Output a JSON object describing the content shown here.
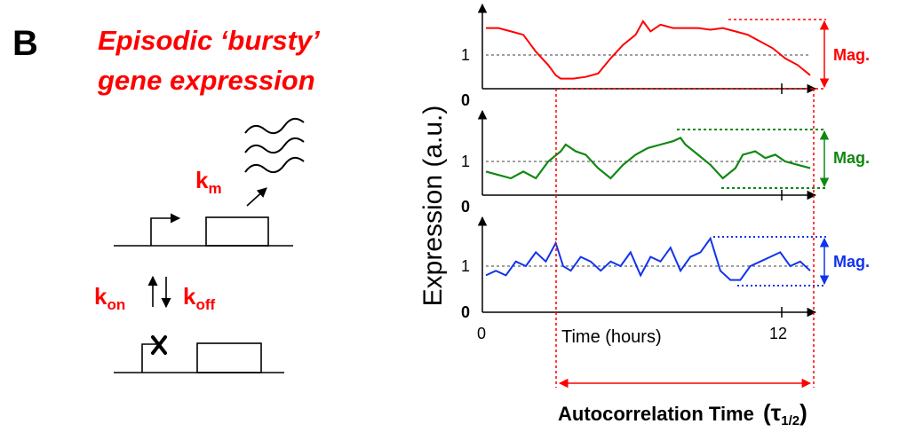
{
  "panel": {
    "letter": "B"
  },
  "title": {
    "line1": "Episodic ‘bursty’",
    "line2": "gene expression"
  },
  "rates": {
    "km_main": "k",
    "km_sub": "m",
    "kon_main": "k",
    "kon_sub": "on",
    "koff_main": "k",
    "koff_sub": "off"
  },
  "axes": {
    "ylabel": "Expression (a.u.)",
    "xlabel": "Time (hours)",
    "x_tick_0": "0",
    "x_tick_12": "12",
    "y_tick_0": "0",
    "y_tick_1": "1"
  },
  "magnitude": {
    "label": "Mag."
  },
  "autocorrelation": {
    "label": "Autocorrelation Time",
    "tau_sym": "(τ",
    "tau_sub": "1/2",
    "tau_close": ")"
  },
  "colors": {
    "red": "#ff0000",
    "green": "#118811",
    "blue": "#1133ee",
    "black": "#000000"
  },
  "chart_data": {
    "type": "line",
    "x_range": [
      0,
      13.5
    ],
    "y_range": [
      0,
      2
    ],
    "series": [
      {
        "x": [
          0,
          0.5,
          1,
          1.5,
          2,
          2.5,
          2.8,
          3,
          3.5,
          4,
          4.5,
          5,
          5.5,
          6,
          6.3,
          6.6,
          7,
          7.5,
          8,
          8.5,
          9,
          9.5,
          10,
          10.5,
          11,
          11.5,
          12,
          12.5,
          13
        ],
        "y": [
          1.8,
          1.8,
          1.7,
          1.6,
          1.1,
          0.7,
          0.4,
          0.3,
          0.3,
          0.35,
          0.45,
          0.9,
          1.3,
          1.6,
          2.0,
          1.7,
          1.9,
          1.8,
          1.8,
          1.8,
          1.75,
          1.8,
          1.7,
          1.6,
          1.4,
          1.2,
          0.9,
          0.7,
          0.4
        ]
      },
      {
        "x": [
          0,
          0.5,
          1,
          1.5,
          2,
          2.5,
          3,
          3.2,
          3.6,
          4,
          4.5,
          5,
          5.5,
          6,
          6.5,
          7,
          7.5,
          7.8,
          8,
          8.5,
          9,
          9.5,
          10,
          10.3,
          10.8,
          11.2,
          11.6,
          12,
          12.5,
          13
        ],
        "y": [
          0.7,
          0.6,
          0.5,
          0.7,
          0.5,
          1.0,
          1.3,
          1.5,
          1.3,
          1.2,
          0.8,
          0.5,
          0.9,
          1.2,
          1.4,
          1.5,
          1.6,
          1.7,
          1.5,
          1.2,
          0.9,
          0.5,
          0.8,
          1.2,
          1.3,
          1.1,
          1.2,
          1.0,
          0.9,
          0.8
        ]
      },
      {
        "x": [
          0,
          0.4,
          0.8,
          1.2,
          1.6,
          2,
          2.4,
          2.8,
          3.1,
          3.4,
          3.8,
          4.2,
          4.6,
          5,
          5.4,
          5.8,
          6.2,
          6.6,
          7,
          7.4,
          7.8,
          8.2,
          8.6,
          9,
          9.4,
          9.8,
          10.2,
          10.6,
          11,
          11.4,
          11.8,
          12.2,
          12.6,
          13
        ],
        "y": [
          0.8,
          0.9,
          0.8,
          1.1,
          1.0,
          1.3,
          1.1,
          1.5,
          1.0,
          0.9,
          1.2,
          1.1,
          0.9,
          1.1,
          1.0,
          1.3,
          0.8,
          1.2,
          1.1,
          1.4,
          0.9,
          1.2,
          1.3,
          1.6,
          0.9,
          0.7,
          0.7,
          1.0,
          1.1,
          1.2,
          1.3,
          1.0,
          1.1,
          0.9
        ]
      }
    ]
  }
}
